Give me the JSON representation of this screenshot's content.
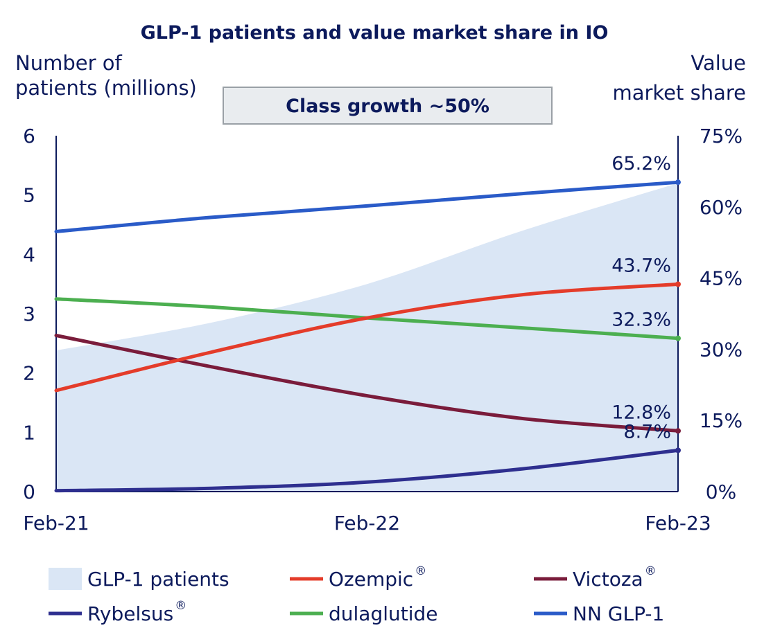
{
  "chart_data": {
    "type": "line",
    "title": "GLP-1 patients and value market share in IO",
    "annotation": "Class growth ~50%",
    "left_axis": {
      "label_lines": [
        "Number of",
        "patients (millions)"
      ],
      "range": [
        0,
        6
      ],
      "ticks": [
        "0",
        "1",
        "2",
        "3",
        "4",
        "5",
        "6"
      ]
    },
    "right_axis": {
      "label_lines": [
        "Value",
        "market share"
      ],
      "range": [
        0,
        75
      ],
      "ticks": [
        "0%",
        "15%",
        "30%",
        "45%",
        "60%",
        "75%"
      ]
    },
    "x_ticks": [
      "Feb-21",
      "Feb-22",
      "Feb-23"
    ],
    "x": [
      0,
      0.25,
      0.5,
      0.75,
      1.0
    ],
    "area": {
      "name": "GLP-1 patients",
      "axis": "left",
      "color": "#dae6f5",
      "values": [
        2.38,
        2.85,
        3.5,
        4.4,
        5.2
      ]
    },
    "series": [
      {
        "name": "NN GLP-1",
        "sup": "",
        "axis": "right",
        "color": "#2a5bc8",
        "values": [
          54.8,
          57.8,
          60.2,
          62.8,
          65.2
        ],
        "end_label": "65.2%"
      },
      {
        "name": "Ozempic",
        "sup": "®",
        "axis": "right",
        "color": "#e43c2a",
        "values": [
          21.3,
          29.4,
          36.6,
          41.5,
          43.7
        ],
        "end_label": "43.7%"
      },
      {
        "name": "dulaglutide",
        "sup": "",
        "axis": "right",
        "color": "#4caf50",
        "values": [
          40.6,
          38.9,
          36.6,
          34.5,
          32.3
        ],
        "end_label": "32.3%"
      },
      {
        "name": "Victoza",
        "sup": "®",
        "axis": "right",
        "color": "#7a1c3b",
        "values": [
          32.9,
          26.3,
          20.2,
          15.4,
          12.8
        ],
        "end_label": "12.8%"
      },
      {
        "name": "Rybelsus",
        "sup": "®",
        "axis": "right",
        "color": "#2e2f8f",
        "values": [
          0.2,
          0.7,
          2.0,
          4.8,
          8.7
        ],
        "end_label": "8.7%"
      }
    ],
    "legend": [
      {
        "name": "GLP-1 patients",
        "sup": "",
        "kind": "area",
        "color": "#dae6f5"
      },
      {
        "name": "Ozempic",
        "sup": "®",
        "kind": "line",
        "color": "#e43c2a"
      },
      {
        "name": "Victoza",
        "sup": "®",
        "kind": "line",
        "color": "#7a1c3b"
      },
      {
        "name": "Rybelsus",
        "sup": "®",
        "kind": "line",
        "color": "#2e2f8f"
      },
      {
        "name": "dulaglutide",
        "sup": "",
        "kind": "line",
        "color": "#4caf50"
      },
      {
        "name": "NN GLP-1",
        "sup": "",
        "kind": "line",
        "color": "#2a5bc8"
      }
    ]
  }
}
